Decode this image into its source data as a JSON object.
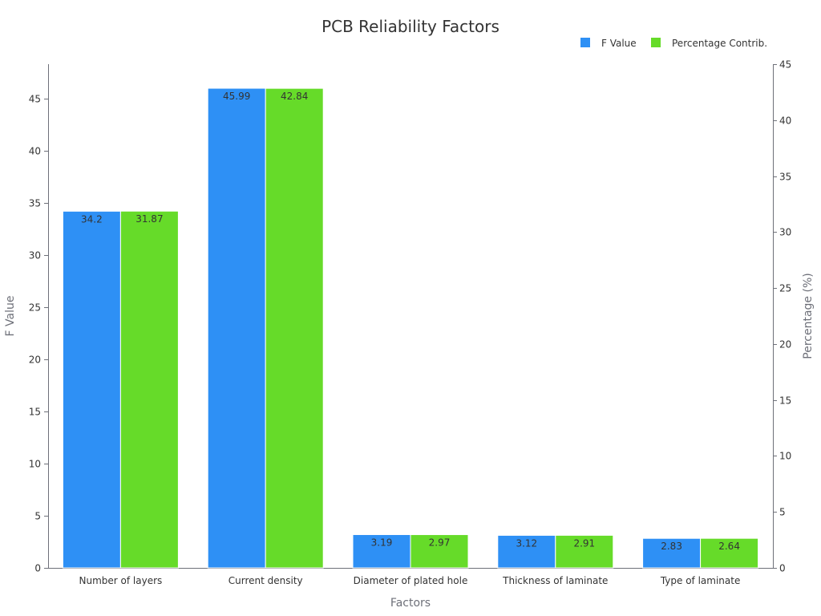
{
  "chart_data": {
    "type": "bar",
    "title": "PCB Reliability Factors",
    "xlabel": "Factors",
    "ylabel": "F Value",
    "ylabel_right": "Percentage (%)",
    "categories": [
      "Number of layers",
      "Current density",
      "Diameter of plated hole",
      "Thickness of laminate",
      "Type of laminate"
    ],
    "series": [
      {
        "name": "F Value",
        "axis": "left",
        "color": "#2e90f5",
        "values": [
          34.2,
          45.99,
          3.19,
          3.12,
          2.83
        ],
        "labels": [
          "34.2",
          "45.99",
          "3.19",
          "3.12",
          "2.83"
        ]
      },
      {
        "name": "Percentage Contrib.",
        "axis": "right",
        "color": "#66db29",
        "values": [
          31.87,
          42.84,
          2.97,
          2.91,
          2.64
        ],
        "labels": [
          "31.87",
          "42.84",
          "2.97",
          "2.91",
          "2.64"
        ]
      }
    ],
    "ylim": [
      0,
      48.3
    ],
    "ylim_right": [
      0,
      45
    ],
    "yticks": [
      "0",
      "5",
      "10",
      "15",
      "20",
      "25",
      "30",
      "35",
      "40",
      "45"
    ],
    "yticks_right": [
      "0",
      "5",
      "10",
      "15",
      "20",
      "25",
      "30",
      "35",
      "40",
      "45"
    ],
    "legend": "top-right",
    "grid": false
  }
}
